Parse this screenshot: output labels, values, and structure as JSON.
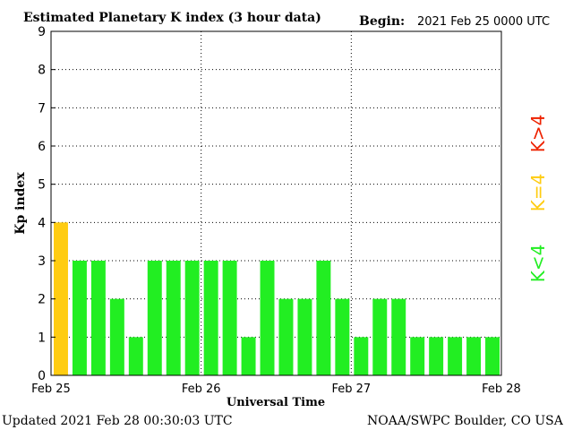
{
  "chart_data": {
    "type": "bar",
    "title": "Estimated Planetary K index (3 hour data)",
    "begin_label": "Begin:",
    "begin_value": "2021 Feb 25 0000 UTC",
    "ylabel": "Kp index",
    "xlabel": "Universal Time",
    "ylim": [
      0,
      9
    ],
    "yticks": [
      "0",
      "1",
      "2",
      "3",
      "4",
      "5",
      "6",
      "7",
      "8",
      "9"
    ],
    "xticks": [
      "Feb 25",
      "Feb 26",
      "Feb 27",
      "Feb 28"
    ],
    "values": [
      4,
      3,
      3,
      2,
      1,
      3,
      3,
      3,
      3,
      3,
      1,
      3,
      2,
      2,
      3,
      2,
      1,
      2,
      2,
      1,
      1,
      1,
      1,
      1
    ],
    "grid": true,
    "legend": [
      {
        "label": "K<4",
        "color": "#22ee22"
      },
      {
        "label": "K=4",
        "color": "#ffcc11"
      },
      {
        "label": "K>4",
        "color": "#ee2200"
      }
    ]
  },
  "footer": {
    "updated": "Updated 2021 Feb 28 00:30:03 UTC",
    "source": "NOAA/SWPC Boulder, CO USA"
  },
  "colors": {
    "below4": "#22ee22",
    "equal4": "#ffcc11",
    "above4": "#ee2200"
  }
}
